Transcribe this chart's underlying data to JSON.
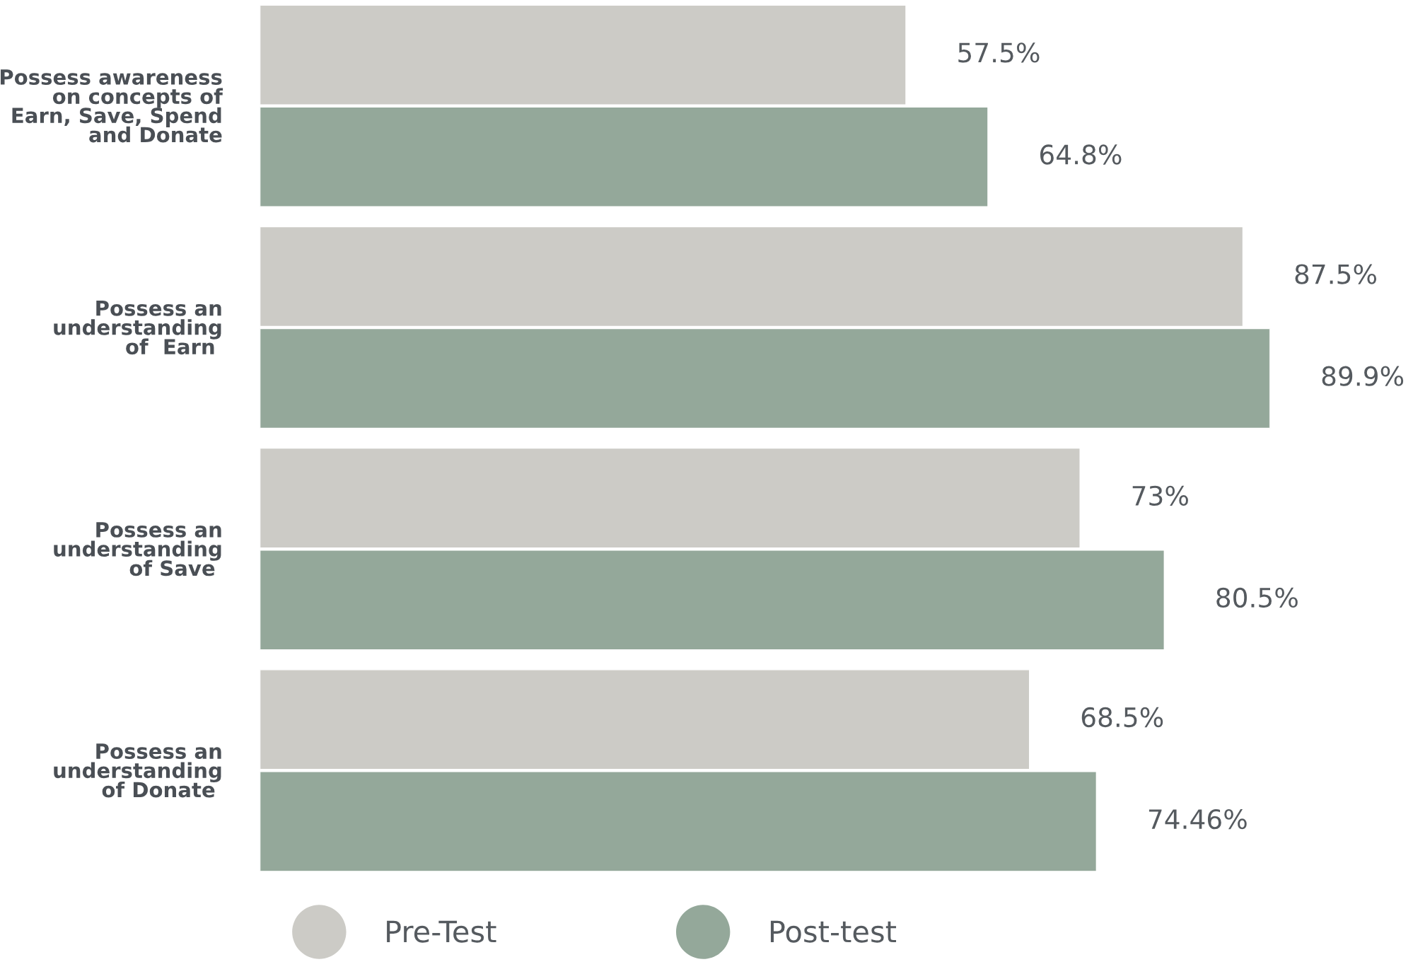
{
  "chart_data": {
    "type": "bar",
    "orientation": "horizontal",
    "categories": [
      "Possess awareness\non concepts of\nEarn, Save, Spend\nand Donate",
      "Possess an\nunderstanding\nof  Earn ",
      "Possess an\nunderstanding\nof Save ",
      "Possess an\nunderstanding\nof Donate "
    ],
    "series": [
      {
        "name": "Pre-Test",
        "color": "#cccbc6",
        "values": [
          57.5,
          87.5,
          73,
          68.5
        ],
        "value_labels": [
          "57.5%",
          "87.5%",
          "73%",
          "68.5%"
        ]
      },
      {
        "name": "Post-test",
        "color": "#94a89a",
        "values": [
          64.8,
          89.9,
          80.5,
          74.46
        ],
        "value_labels": [
          "64.8%",
          "89.9%",
          "80.5%",
          "74.46%"
        ]
      }
    ],
    "tick_labels": "y",
    "grid": false,
    "legend": "bottom"
  }
}
